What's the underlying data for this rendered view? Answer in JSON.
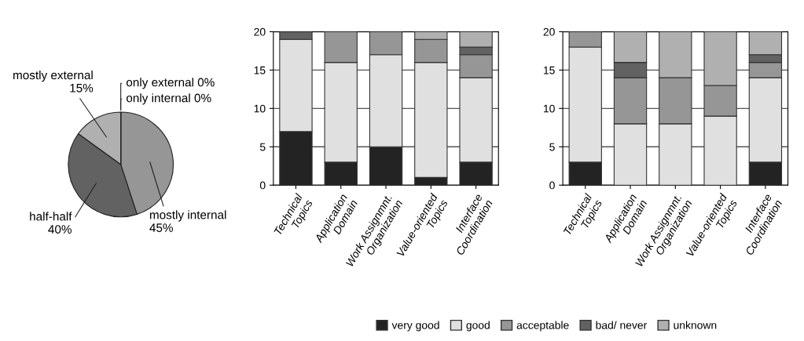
{
  "chart_data": [
    {
      "type": "pie",
      "categories": [
        "mostly internal",
        "half-half",
        "mostly external",
        "only external",
        "only internal"
      ],
      "values": [
        45,
        40,
        15,
        0,
        0
      ],
      "colors": [
        "#969696",
        "#626262",
        "#b0b0b0",
        "#808080",
        "#d0d0d0"
      ],
      "value_labels": [
        "45%",
        "40%",
        "15%",
        "0%",
        "0%"
      ]
    },
    {
      "type": "bar",
      "stacked": true,
      "categories": [
        "Technical\nTopics",
        "Application\nDomain",
        "Work Assignmnt.\nOrganization",
        "Value-oriented\nTopics",
        "Interface\nCoordination"
      ],
      "ylim": [
        0,
        20
      ],
      "yticks": [
        0,
        5,
        10,
        15,
        20
      ],
      "grid": "y",
      "series": [
        {
          "color": "#232323",
          "values": [
            7,
            3,
            5,
            1,
            3
          ]
        },
        {
          "color": "#e0e0e0",
          "values": [
            12,
            13,
            12,
            15,
            11
          ]
        },
        {
          "color": "#969696",
          "values": [
            0,
            4,
            3,
            3,
            3
          ]
        },
        {
          "color": "#626262",
          "values": [
            1,
            0,
            0,
            0,
            1
          ]
        },
        {
          "color": "#b0b0b0",
          "values": [
            0,
            0,
            0,
            1,
            2
          ]
        }
      ]
    },
    {
      "type": "bar",
      "stacked": true,
      "categories": [
        "Technical\nTopics",
        "Application\nDomain",
        "Work Assignmnt.\nOrganization",
        "Value-oriented\nTopics",
        "Interface\nCoordination"
      ],
      "ylim": [
        0,
        20
      ],
      "yticks": [
        0,
        5,
        10,
        15,
        20
      ],
      "grid": "y",
      "legend": "bottom",
      "series": [
        {
          "name": "very good",
          "color": "#232323",
          "values": [
            3,
            0,
            0,
            0,
            3
          ]
        },
        {
          "name": "good",
          "color": "#e0e0e0",
          "values": [
            15,
            8,
            8,
            9,
            11
          ]
        },
        {
          "name": "acceptable",
          "color": "#969696",
          "values": [
            2,
            6,
            6,
            4,
            2
          ]
        },
        {
          "name": "bad/ never",
          "color": "#626262",
          "values": [
            0,
            2,
            0,
            0,
            1
          ]
        },
        {
          "name": "unknown",
          "color": "#b0b0b0",
          "values": [
            0,
            4,
            6,
            7,
            3
          ]
        }
      ]
    }
  ]
}
